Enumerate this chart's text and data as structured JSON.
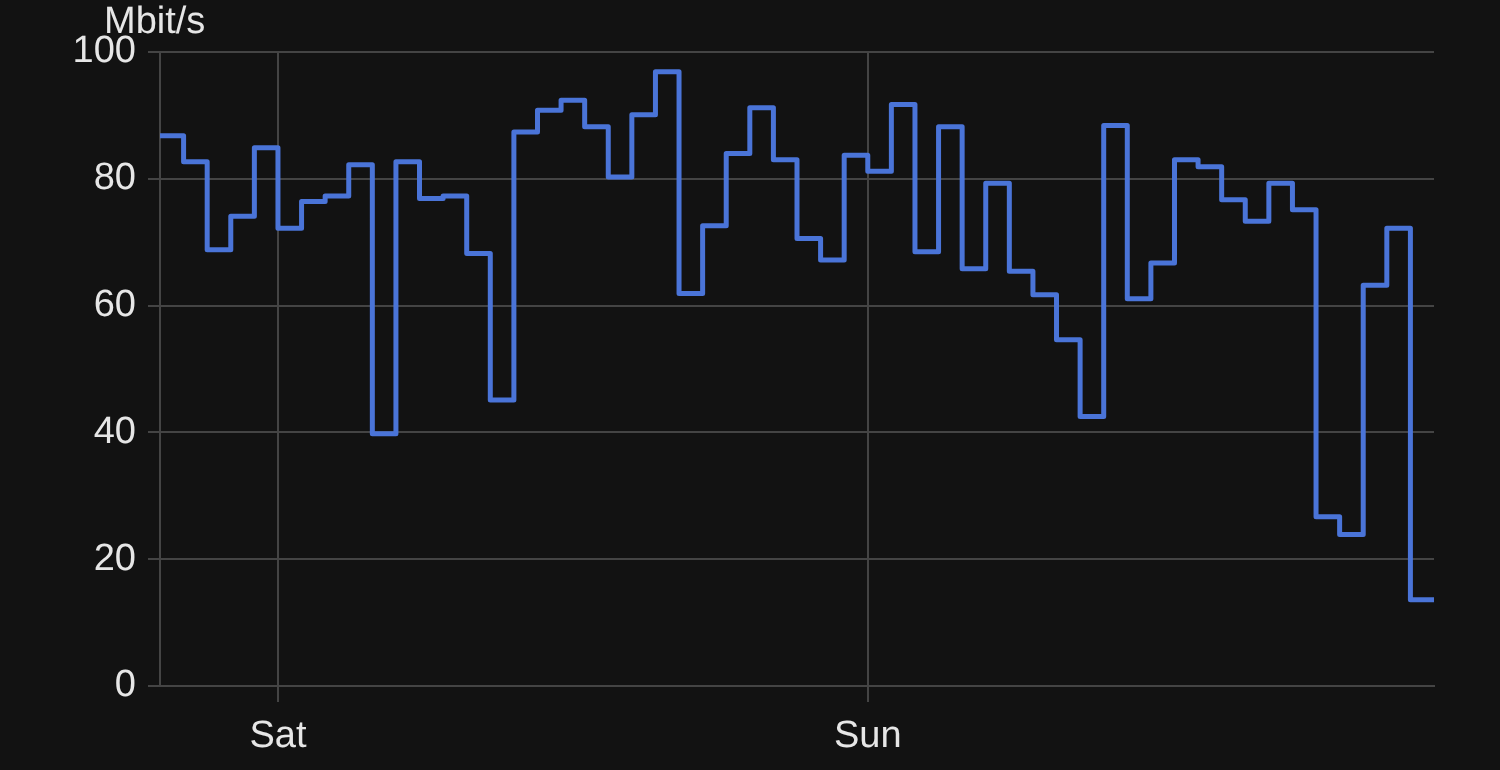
{
  "chart_data": {
    "type": "step",
    "ylabel": "Mbit/s",
    "categories": [
      null,
      null,
      null,
      null,
      null,
      "Sat",
      null,
      null,
      null,
      null,
      null,
      null,
      null,
      null,
      null,
      null,
      null,
      null,
      null,
      null,
      null,
      null,
      null,
      null,
      null,
      null,
      null,
      null,
      null,
      null,
      "Sun",
      null,
      null,
      null,
      null,
      null,
      null,
      null,
      null,
      null,
      null,
      null,
      null,
      null,
      null,
      null,
      null,
      null,
      null,
      null,
      null,
      null,
      null,
      null,
      null
    ],
    "series": [
      {
        "color": "#4a74d8",
        "values": [
          86.8,
          82.7,
          68.8,
          74.1,
          84.9,
          72.2,
          76.4,
          77.3,
          82.2,
          39.8,
          82.7,
          76.9,
          77.3,
          68.2,
          45.1,
          87.4,
          90.8,
          92.4,
          88.2,
          80.3,
          90.1,
          96.9,
          61.9,
          72.6,
          84.0,
          91.2,
          83.0,
          70.6,
          67.2,
          83.7,
          81.2,
          91.7,
          68.5,
          88.2,
          65.8,
          79.3,
          65.4,
          61.7,
          54.6,
          42.5,
          88.4,
          61.1,
          66.7,
          83.0,
          81.9,
          76.7,
          73.3,
          79.3,
          75.1,
          26.7,
          23.9,
          63.2,
          72.2,
          13.6,
          13.6
        ]
      }
    ],
    "ylim": [
      0,
      100
    ],
    "yticks": [
      0,
      20,
      40,
      60,
      80,
      100
    ],
    "grid": true,
    "legend": false,
    "marker": "none",
    "line_style": "solid"
  }
}
